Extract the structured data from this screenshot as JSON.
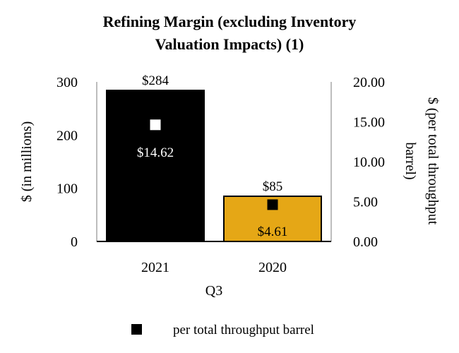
{
  "chart_data": {
    "type": "bar",
    "title": [
      "Refining Margin (excluding Inventory",
      "Valuation Impacts) (1)"
    ],
    "xlabel": "Q3",
    "ylabel": "$ (in millions)",
    "y2label": [
      "$ (per total throughput",
      "barrel)"
    ],
    "categories": [
      "2021",
      "2020"
    ],
    "bars": {
      "values": [
        284,
        85
      ],
      "labels": [
        "$284",
        "$85"
      ],
      "colors": [
        "#000000",
        "#E5A716"
      ]
    },
    "markers": {
      "name": "per total throughput barrel",
      "values": [
        14.62,
        4.61
      ],
      "labels": [
        "$14.62",
        "$4.61"
      ],
      "colors": [
        "#FFFFFF",
        "#000000"
      ]
    },
    "ylim": [
      0,
      300
    ],
    "y2lim": [
      0,
      20
    ],
    "yticks": [
      "0",
      "100",
      "200",
      "300"
    ],
    "y2ticks": [
      "0.00",
      "5.00",
      "10.00",
      "15.00",
      "20.00"
    ],
    "legend": {
      "position": "bottom",
      "label": "per total throughput barrel",
      "marker_color": "#000000"
    },
    "grid": false
  }
}
